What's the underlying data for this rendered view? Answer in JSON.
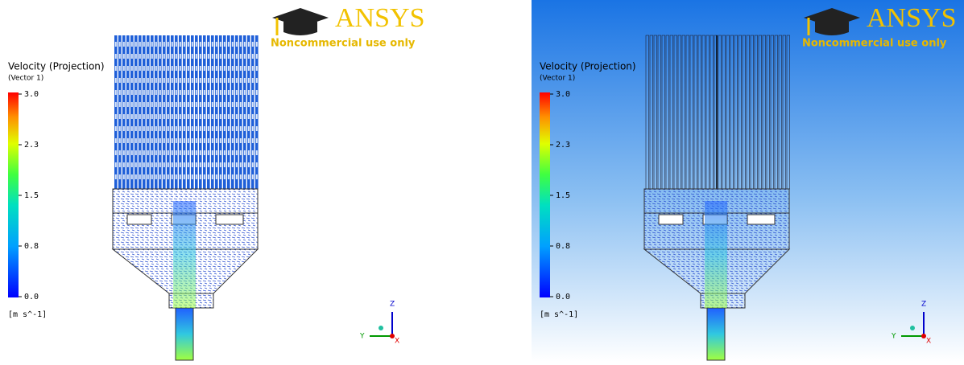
{
  "panels": [
    {
      "legend": {
        "title": "Velocity (Projection)",
        "subtitle": "(Vector 1)",
        "ticks": [
          "3.0",
          "2.3",
          "1.5",
          "0.8",
          "0.0"
        ],
        "unit": "[m s^-1]"
      },
      "logo": {
        "brand": "ANSYS",
        "note": "Noncommercial use only"
      },
      "axes": {
        "z": "Z",
        "y": "Y",
        "x": "X"
      }
    },
    {
      "legend": {
        "title": "Velocity (Projection)",
        "subtitle": "(Vector 1)",
        "ticks": [
          "3.0",
          "2.3",
          "1.5",
          "0.8",
          "0.0"
        ],
        "unit": "[m s^-1]"
      },
      "logo": {
        "brand": "ANSYS",
        "note": "Noncommercial use only"
      },
      "axes": {
        "z": "Z",
        "y": "Y",
        "x": "X"
      }
    }
  ]
}
